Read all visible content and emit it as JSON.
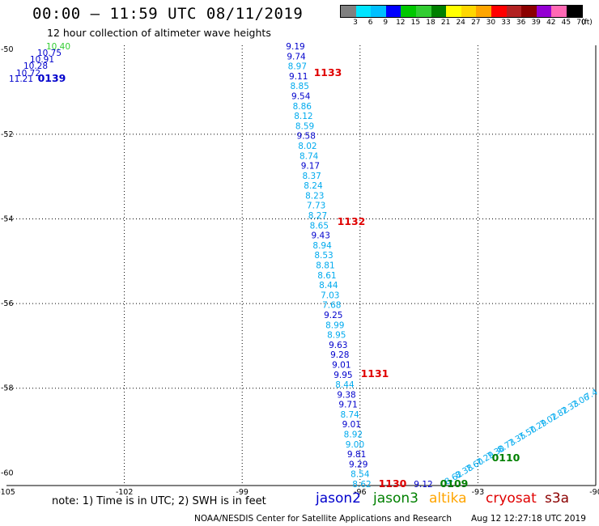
{
  "header": {
    "title": "00:00 – 11:59 UTC 08/11/2019",
    "subtitle": "12 hour collection of altimeter wave heights"
  },
  "colorbar": {
    "colors": [
      "#808080",
      "#00e5ff",
      "#00bfff",
      "#0000ff",
      "#00c800",
      "#32cd32",
      "#008000",
      "#ffff00",
      "#ffd700",
      "#ffa500",
      "#ff0000",
      "#b22222",
      "#8b0000",
      "#9400d3",
      "#ff69b4",
      "#000000"
    ],
    "labels": [
      "3",
      "6",
      "9",
      "12",
      "15",
      "18",
      "21",
      "24",
      "27",
      "30",
      "33",
      "36",
      "39",
      "42",
      "45",
      "70",
      "(ft)"
    ]
  },
  "axes": {
    "x_ticks": [
      "-105",
      "-102",
      "-99",
      "-96",
      "-93",
      "-90"
    ],
    "y_ticks": [
      "-50",
      "-52",
      "-54",
      "-56",
      "-58",
      "-60"
    ],
    "lon_range": [
      -105,
      -90
    ],
    "lat_range": [
      -60.3,
      -49.9
    ]
  },
  "colors": {
    "jason2": "#0000cc",
    "jason3": "#008000",
    "altika": "#ffa500",
    "cryosat": "#e00000",
    "s3a": "#8b0000",
    "light": "#00aaee",
    "green_light": "#32cd32"
  },
  "map": {
    "track_a_values": [
      "9.19",
      "9.74",
      "8.97",
      "9.11",
      "8.85",
      "9.54",
      "8.86",
      "8.12",
      "8.59",
      "9.58",
      "8.02",
      "8.74",
      "9.17",
      "8.37",
      "8.24",
      "8.23",
      "7.73",
      "8.27",
      "8.65",
      "9.43",
      "8.94",
      "8.53",
      "8.81",
      "8.61",
      "8.44",
      "7.03",
      "7.68",
      "9.25",
      "8.99",
      "8.95",
      "9.63",
      "9.28",
      "9.01",
      "9.95",
      "8.44",
      "9.38",
      "9.71",
      "8.74",
      "9.01",
      "8.92",
      "9.00",
      "9.81",
      "9.29",
      "8.54",
      "8.62"
    ],
    "track_a_colors": [
      "d",
      "d",
      "l",
      "d",
      "l",
      "d",
      "l",
      "l",
      "l",
      "d",
      "l",
      "l",
      "d",
      "l",
      "l",
      "l",
      "l",
      "l",
      "l",
      "d",
      "l",
      "l",
      "l",
      "l",
      "l",
      "l",
      "l",
      "d",
      "l",
      "l",
      "d",
      "d",
      "d",
      "d",
      "l",
      "d",
      "d",
      "l",
      "d",
      "l",
      "l",
      "d",
      "d",
      "l",
      "l"
    ],
    "track_b_values": [
      "11.21",
      "10.72",
      "10.28",
      "10.91",
      "10.75",
      "10.40"
    ],
    "track_b_colors": [
      "d",
      "d",
      "d",
      "d",
      "d",
      "g"
    ],
    "track_c_values": [
      "8.62",
      "8.38",
      "7.60",
      "7.29",
      "7.30",
      "8.73",
      "7.35",
      "7.50",
      "7.29",
      "7.02",
      "7.82",
      "7.33",
      "7.06",
      "7.4"
    ],
    "track_c_colors": [
      "l",
      "l",
      "l",
      "l",
      "l",
      "l",
      "l",
      "l",
      "l",
      "l",
      "l",
      "l",
      "l",
      "l"
    ],
    "track_d_value": "9.12",
    "time_labels": [
      {
        "text": "0139",
        "color": "#0000cc"
      },
      {
        "text": "1133",
        "color": "#e00000"
      },
      {
        "text": "1132",
        "color": "#e00000"
      },
      {
        "text": "1131",
        "color": "#e00000"
      },
      {
        "text": "1130",
        "color": "#e00000"
      },
      {
        "text": "0109",
        "color": "#008000"
      },
      {
        "text": "0110",
        "color": "#008000"
      }
    ]
  },
  "footer": {
    "note": "note:  1) Time is in UTC;  2) SWH is in feet",
    "legend": [
      "jason2",
      "jason3",
      "altika",
      "cryosat",
      "s3a"
    ],
    "credit": "NOAA/NESDIS Center for Satellite Applications and Research",
    "timestamp": "Aug 12 12:27:18 UTC 2019"
  }
}
